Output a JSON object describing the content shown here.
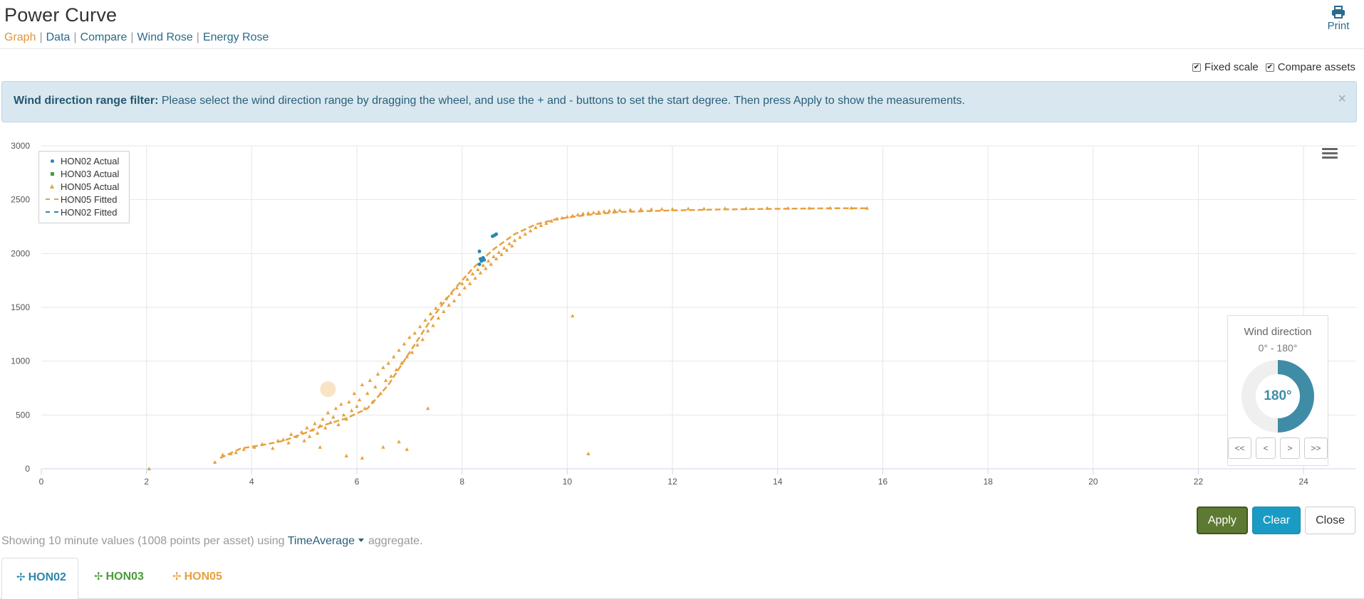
{
  "header": {
    "title": "Power Curve",
    "nav": [
      {
        "label": "Graph",
        "active": true
      },
      {
        "label": "Data"
      },
      {
        "label": "Compare"
      },
      {
        "label": "Wind Rose"
      },
      {
        "label": "Energy Rose"
      }
    ],
    "print_label": "Print"
  },
  "options": {
    "fixed_scale_label": "Fixed scale",
    "fixed_scale_checked": true,
    "compare_assets_label": "Compare assets",
    "compare_assets_checked": true
  },
  "alert": {
    "title": "Wind direction range filter:",
    "message": "Please select the wind direction range by dragging the wheel, and use the + and - buttons to set the start degree. Then press Apply to show the measurements.",
    "close_glyph": "×"
  },
  "colors": {
    "accent": "#e3933a",
    "hon02": "#2a87ad",
    "hon03": "#4a9a3a",
    "hon05": "#e7a13e",
    "apply": "#5d7a32",
    "clear": "#1a9bc4",
    "alert_bg": "#d9e8f0"
  },
  "wind_direction": {
    "title": "Wind direction",
    "range": "0° - 180°",
    "value_label": "180°",
    "span_degrees": 180,
    "buttons": [
      "<<",
      "<",
      ">",
      ">>"
    ]
  },
  "actions": {
    "apply": "Apply",
    "clear": "Clear",
    "close": "Close"
  },
  "info": {
    "prefix": "Showing 10 minute values (1008 points per asset) using",
    "aggregate": "TimeAverage",
    "suffix": "aggregate."
  },
  "tabs": [
    {
      "label": "HON02",
      "color": "#2a87ad",
      "active": true
    },
    {
      "label": "HON03",
      "color": "#4a9a3a"
    },
    {
      "label": "HON05",
      "color": "#e7a13e"
    }
  ],
  "chart_data": {
    "type": "scatter",
    "title": "",
    "xlabel": "",
    "ylabel": "",
    "xlim": [
      0,
      25
    ],
    "ylim": [
      0,
      3000
    ],
    "xticks": [
      0,
      2,
      4,
      6,
      8,
      10,
      12,
      14,
      16,
      18,
      20,
      22,
      24
    ],
    "yticks": [
      0,
      500,
      1000,
      1500,
      2000,
      2500,
      3000
    ],
    "grid": true,
    "legend_position": "top-left",
    "series": [
      {
        "name": "HON02 Actual",
        "kind": "scatter",
        "marker": "circle",
        "color": "#2a87ad",
        "points": [
          [
            8.33,
            2020
          ],
          [
            8.35,
            1950
          ],
          [
            8.37,
            1930
          ],
          [
            8.4,
            1960
          ],
          [
            8.42,
            1940
          ],
          [
            8.33,
            1900
          ],
          [
            8.58,
            2160
          ],
          [
            8.62,
            2170
          ],
          [
            8.65,
            2180
          ]
        ]
      },
      {
        "name": "HON03 Actual",
        "kind": "scatter",
        "marker": "square",
        "color": "#4a9a3a",
        "points": []
      },
      {
        "name": "HON05 Actual",
        "kind": "scatter",
        "marker": "triangle",
        "color": "#e7a13e",
        "highlight": [
          5.45,
          740
        ],
        "points": [
          [
            2.05,
            0
          ],
          [
            3.3,
            60
          ],
          [
            3.45,
            130
          ],
          [
            3.6,
            140
          ],
          [
            3.7,
            150
          ],
          [
            3.85,
            180
          ],
          [
            4.05,
            200
          ],
          [
            4.2,
            230
          ],
          [
            4.4,
            190
          ],
          [
            4.5,
            260
          ],
          [
            4.6,
            270
          ],
          [
            4.7,
            240
          ],
          [
            4.75,
            320
          ],
          [
            4.85,
            300
          ],
          [
            4.95,
            340
          ],
          [
            5.0,
            260
          ],
          [
            5.05,
            380
          ],
          [
            5.1,
            300
          ],
          [
            5.15,
            360
          ],
          [
            5.2,
            420
          ],
          [
            5.25,
            330
          ],
          [
            5.3,
            400
          ],
          [
            5.35,
            460
          ],
          [
            5.4,
            380
          ],
          [
            5.45,
            520
          ],
          [
            5.5,
            430
          ],
          [
            5.55,
            480
          ],
          [
            5.6,
            560
          ],
          [
            5.65,
            410
          ],
          [
            5.7,
            600
          ],
          [
            5.75,
            500
          ],
          [
            5.8,
            460
          ],
          [
            5.85,
            620
          ],
          [
            5.9,
            540
          ],
          [
            5.95,
            700
          ],
          [
            6.0,
            580
          ],
          [
            6.05,
            640
          ],
          [
            6.1,
            780
          ],
          [
            6.15,
            560
          ],
          [
            6.2,
            700
          ],
          [
            6.25,
            820
          ],
          [
            6.3,
            620
          ],
          [
            6.35,
            760
          ],
          [
            6.4,
            880
          ],
          [
            6.45,
            700
          ],
          [
            6.5,
            940
          ],
          [
            6.55,
            820
          ],
          [
            6.6,
            980
          ],
          [
            6.65,
            860
          ],
          [
            6.7,
            1040
          ],
          [
            6.75,
            920
          ],
          [
            6.8,
            1100
          ],
          [
            6.85,
            980
          ],
          [
            6.9,
            1160
          ],
          [
            6.95,
            1040
          ],
          [
            7.0,
            1220
          ],
          [
            7.05,
            1080
          ],
          [
            7.1,
            1260
          ],
          [
            7.15,
            1150
          ],
          [
            7.2,
            1320
          ],
          [
            7.25,
            1200
          ],
          [
            7.3,
            1380
          ],
          [
            7.35,
            1280
          ],
          [
            7.4,
            1440
          ],
          [
            7.45,
            1330
          ],
          [
            7.5,
            1490
          ],
          [
            7.55,
            1400
          ],
          [
            7.6,
            1540
          ],
          [
            7.65,
            1460
          ],
          [
            7.7,
            1580
          ],
          [
            7.75,
            1520
          ],
          [
            7.8,
            1630
          ],
          [
            7.85,
            1560
          ],
          [
            7.9,
            1680
          ],
          [
            7.95,
            1620
          ],
          [
            8.0,
            1720
          ],
          [
            8.05,
            1680
          ],
          [
            8.1,
            1760
          ],
          [
            8.15,
            1720
          ],
          [
            8.2,
            1810
          ],
          [
            8.25,
            1770
          ],
          [
            8.3,
            1850
          ],
          [
            8.35,
            1820
          ],
          [
            8.4,
            1890
          ],
          [
            8.45,
            1860
          ],
          [
            8.5,
            1930
          ],
          [
            8.55,
            1900
          ],
          [
            8.6,
            1970
          ],
          [
            8.65,
            1950
          ],
          [
            8.7,
            2010
          ],
          [
            8.75,
            1990
          ],
          [
            8.8,
            2050
          ],
          [
            8.85,
            2030
          ],
          [
            8.9,
            2090
          ],
          [
            8.95,
            2070
          ],
          [
            9.0,
            2120
          ],
          [
            9.1,
            2150
          ],
          [
            9.2,
            2180
          ],
          [
            9.3,
            2210
          ],
          [
            9.4,
            2240
          ],
          [
            9.5,
            2260
          ],
          [
            9.6,
            2280
          ],
          [
            9.7,
            2300
          ],
          [
            9.8,
            2320
          ],
          [
            9.9,
            2330
          ],
          [
            10.0,
            2340
          ],
          [
            10.1,
            2350
          ],
          [
            10.2,
            2360
          ],
          [
            10.3,
            2370
          ],
          [
            10.4,
            2375
          ],
          [
            10.5,
            2380
          ],
          [
            10.6,
            2385
          ],
          [
            10.7,
            2390
          ],
          [
            10.8,
            2395
          ],
          [
            10.9,
            2400
          ],
          [
            11.0,
            2400
          ],
          [
            11.2,
            2405
          ],
          [
            11.4,
            2410
          ],
          [
            11.6,
            2410
          ],
          [
            11.8,
            2412
          ],
          [
            12.0,
            2412
          ],
          [
            12.3,
            2415
          ],
          [
            12.6,
            2415
          ],
          [
            13.0,
            2418
          ],
          [
            13.4,
            2418
          ],
          [
            13.8,
            2420
          ],
          [
            14.2,
            2420
          ],
          [
            14.6,
            2420
          ],
          [
            15.0,
            2422
          ],
          [
            15.4,
            2422
          ],
          [
            15.7,
            2420
          ],
          [
            10.1,
            1420
          ],
          [
            10.4,
            140
          ],
          [
            7.35,
            560
          ],
          [
            6.5,
            200
          ],
          [
            6.8,
            250
          ],
          [
            6.95,
            180
          ],
          [
            5.8,
            120
          ],
          [
            6.1,
            100
          ],
          [
            5.3,
            200
          ]
        ]
      },
      {
        "name": "HON05 Fitted",
        "kind": "line",
        "style": "dashed",
        "color": "#e7a13e",
        "points": [
          [
            3.4,
            100
          ],
          [
            3.8,
            190
          ],
          [
            4.2,
            220
          ],
          [
            4.6,
            260
          ],
          [
            5.0,
            330
          ],
          [
            5.4,
            410
          ],
          [
            5.8,
            470
          ],
          [
            6.2,
            560
          ],
          [
            6.6,
            780
          ],
          [
            7.0,
            1080
          ],
          [
            7.4,
            1380
          ],
          [
            7.8,
            1640
          ],
          [
            8.2,
            1860
          ],
          [
            8.6,
            2040
          ],
          [
            9.0,
            2180
          ],
          [
            9.4,
            2270
          ],
          [
            9.8,
            2320
          ],
          [
            10.4,
            2360
          ],
          [
            11.0,
            2385
          ],
          [
            12.0,
            2400
          ],
          [
            13.0,
            2410
          ],
          [
            14.0,
            2415
          ],
          [
            15.0,
            2420
          ],
          [
            15.7,
            2420
          ]
        ]
      },
      {
        "name": "HON02 Fitted",
        "kind": "line",
        "style": "dashed",
        "color": "#2a87ad",
        "points": []
      }
    ]
  }
}
